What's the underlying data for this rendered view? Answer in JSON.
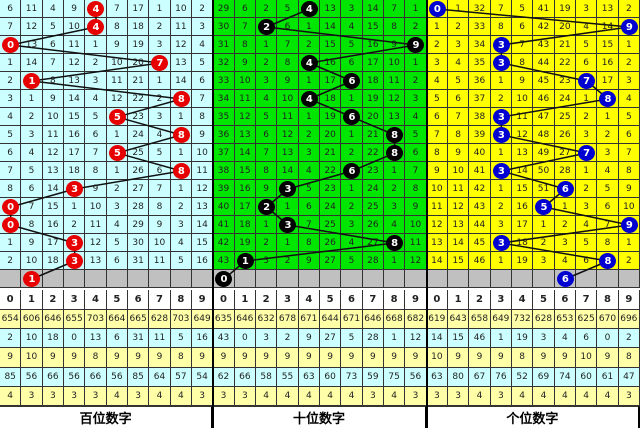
{
  "chart_data": {
    "type": "table",
    "digits": [
      "0",
      "1",
      "2",
      "3",
      "4",
      "5",
      "6",
      "7",
      "8",
      "9"
    ],
    "colors": {
      "gray_row": "#c0c0c0",
      "stat_yellow": "#ffffa8",
      "stat_cyan": "#ccffff"
    },
    "panels": [
      {
        "title": "百位数字",
        "bg": "#ccffff",
        "ball_color": "#e60000",
        "rows": [
          [
            6,
            11,
            4,
            9,
            4,
            7,
            17,
            1,
            10,
            2
          ],
          [
            7,
            12,
            5,
            10,
            4,
            8,
            18,
            2,
            11,
            3
          ],
          [
            0,
            13,
            6,
            11,
            1,
            9,
            19,
            3,
            12,
            4
          ],
          [
            1,
            14,
            7,
            12,
            2,
            10,
            20,
            7,
            13,
            5
          ],
          [
            2,
            1,
            8,
            13,
            3,
            11,
            21,
            1,
            14,
            6
          ],
          [
            3,
            1,
            9,
            14,
            4,
            12,
            22,
            2,
            8,
            7
          ],
          [
            4,
            2,
            10,
            15,
            5,
            5,
            23,
            3,
            1,
            8
          ],
          [
            5,
            3,
            11,
            16,
            6,
            1,
            24,
            4,
            8,
            9
          ],
          [
            6,
            4,
            12,
            17,
            7,
            5,
            25,
            5,
            1,
            10
          ],
          [
            7,
            5,
            13,
            18,
            8,
            1,
            26,
            6,
            8,
            11
          ],
          [
            8,
            6,
            14,
            3,
            9,
            2,
            27,
            7,
            1,
            12
          ],
          [
            0,
            7,
            15,
            1,
            10,
            3,
            28,
            8,
            2,
            13
          ],
          [
            0,
            8,
            16,
            2,
            11,
            4,
            29,
            9,
            3,
            14
          ],
          [
            1,
            9,
            17,
            3,
            12,
            5,
            30,
            10,
            4,
            15
          ],
          [
            2,
            10,
            18,
            3,
            13,
            6,
            31,
            11,
            5,
            16
          ]
        ],
        "draws": [
          4,
          4,
          0,
          7,
          1,
          8,
          5,
          8,
          5,
          8,
          3,
          0,
          0,
          3,
          3
        ],
        "next": 1,
        "stats": [
          [
            "654",
            "606",
            "646",
            "655",
            "703",
            "664",
            "665",
            "628",
            "703",
            "649"
          ],
          [
            "2",
            "10",
            "18",
            "0",
            "13",
            "6",
            "31",
            "11",
            "5",
            "16"
          ],
          [
            "9",
            "10",
            "9",
            "9",
            "8",
            "9",
            "9",
            "9",
            "8",
            "9"
          ],
          [
            "85",
            "56",
            "66",
            "56",
            "66",
            "56",
            "85",
            "64",
            "57",
            "54"
          ],
          [
            "4",
            "3",
            "3",
            "3",
            "3",
            "4",
            "3",
            "4",
            "4",
            "3"
          ]
        ]
      },
      {
        "title": "十位数字",
        "bg": "#00e600",
        "ball_color": "#000000",
        "rows": [
          [
            29,
            6,
            2,
            5,
            4,
            13,
            3,
            14,
            7,
            1
          ],
          [
            30,
            7,
            2,
            6,
            1,
            14,
            4,
            15,
            8,
            2
          ],
          [
            31,
            8,
            1,
            7,
            2,
            15,
            5,
            16,
            9,
            9
          ],
          [
            32,
            9,
            2,
            8,
            4,
            16,
            6,
            17,
            10,
            1
          ],
          [
            33,
            10,
            3,
            9,
            1,
            17,
            6,
            18,
            11,
            2
          ],
          [
            34,
            11,
            4,
            10,
            4,
            18,
            1,
            19,
            12,
            3
          ],
          [
            35,
            12,
            5,
            11,
            1,
            19,
            6,
            20,
            13,
            4
          ],
          [
            36,
            13,
            6,
            12,
            2,
            20,
            1,
            21,
            8,
            5
          ],
          [
            37,
            14,
            7,
            13,
            3,
            21,
            2,
            22,
            8,
            6
          ],
          [
            38,
            15,
            8,
            14,
            4,
            22,
            6,
            23,
            1,
            7
          ],
          [
            39,
            16,
            9,
            3,
            5,
            23,
            1,
            24,
            2,
            8
          ],
          [
            40,
            17,
            2,
            1,
            6,
            24,
            2,
            25,
            3,
            9
          ],
          [
            41,
            18,
            1,
            3,
            7,
            25,
            3,
            26,
            4,
            10
          ],
          [
            42,
            19,
            2,
            1,
            8,
            26,
            4,
            27,
            8,
            11
          ],
          [
            43,
            1,
            3,
            2,
            9,
            27,
            5,
            28,
            1,
            12
          ]
        ],
        "draws": [
          4,
          2,
          9,
          4,
          6,
          4,
          6,
          8,
          8,
          6,
          3,
          2,
          3,
          8,
          1
        ],
        "next": 0,
        "stats": [
          [
            "635",
            "646",
            "632",
            "678",
            "671",
            "644",
            "671",
            "646",
            "668",
            "682"
          ],
          [
            "43",
            "0",
            "3",
            "2",
            "9",
            "27",
            "5",
            "28",
            "1",
            "12"
          ],
          [
            "9",
            "9",
            "9",
            "9",
            "9",
            "9",
            "9",
            "9",
            "9",
            "9"
          ],
          [
            "62",
            "66",
            "58",
            "55",
            "63",
            "60",
            "73",
            "59",
            "75",
            "56"
          ],
          [
            "3",
            "3",
            "4",
            "4",
            "4",
            "4",
            "4",
            "3",
            "4",
            "3"
          ]
        ]
      },
      {
        "title": "个位数字",
        "bg": "#ffff00",
        "ball_color": "#0000d0",
        "rows": [
          [
            0,
            1,
            32,
            7,
            5,
            41,
            19,
            3,
            13,
            2
          ],
          [
            1,
            2,
            33,
            8,
            6,
            42,
            20,
            4,
            14,
            9
          ],
          [
            2,
            3,
            34,
            3,
            7,
            43,
            21,
            5,
            15,
            1
          ],
          [
            3,
            4,
            35,
            3,
            8,
            44,
            22,
            6,
            16,
            2
          ],
          [
            4,
            5,
            36,
            1,
            9,
            45,
            23,
            7,
            17,
            3
          ],
          [
            5,
            6,
            37,
            2,
            10,
            46,
            24,
            1,
            8,
            4
          ],
          [
            6,
            7,
            38,
            3,
            11,
            47,
            25,
            2,
            1,
            5
          ],
          [
            7,
            8,
            39,
            3,
            12,
            48,
            26,
            3,
            2,
            6
          ],
          [
            8,
            9,
            40,
            1,
            13,
            49,
            27,
            7,
            3,
            7
          ],
          [
            9,
            10,
            41,
            3,
            14,
            50,
            28,
            1,
            4,
            8
          ],
          [
            10,
            11,
            42,
            1,
            15,
            51,
            6,
            2,
            5,
            9
          ],
          [
            11,
            12,
            43,
            2,
            16,
            5,
            1,
            3,
            6,
            10
          ],
          [
            12,
            13,
            44,
            3,
            17,
            1,
            2,
            4,
            7,
            9
          ],
          [
            13,
            14,
            45,
            3,
            18,
            2,
            3,
            5,
            8,
            1
          ],
          [
            14,
            15,
            46,
            1,
            19,
            3,
            4,
            6,
            8,
            2
          ]
        ],
        "draws": [
          0,
          9,
          3,
          3,
          7,
          8,
          3,
          3,
          7,
          3,
          6,
          5,
          9,
          3,
          8
        ],
        "next": 6,
        "stats": [
          [
            "619",
            "643",
            "658",
            "649",
            "732",
            "628",
            "653",
            "625",
            "670",
            "696"
          ],
          [
            "14",
            "15",
            "46",
            "1",
            "19",
            "3",
            "4",
            "6",
            "0",
            "2"
          ],
          [
            "10",
            "9",
            "9",
            "9",
            "8",
            "9",
            "9",
            "10",
            "9",
            "8"
          ],
          [
            "63",
            "80",
            "67",
            "76",
            "52",
            "69",
            "74",
            "60",
            "61",
            "47"
          ],
          [
            "3",
            "3",
            "4",
            "3",
            "4",
            "4",
            "4",
            "4",
            "4",
            "3"
          ]
        ]
      }
    ]
  }
}
